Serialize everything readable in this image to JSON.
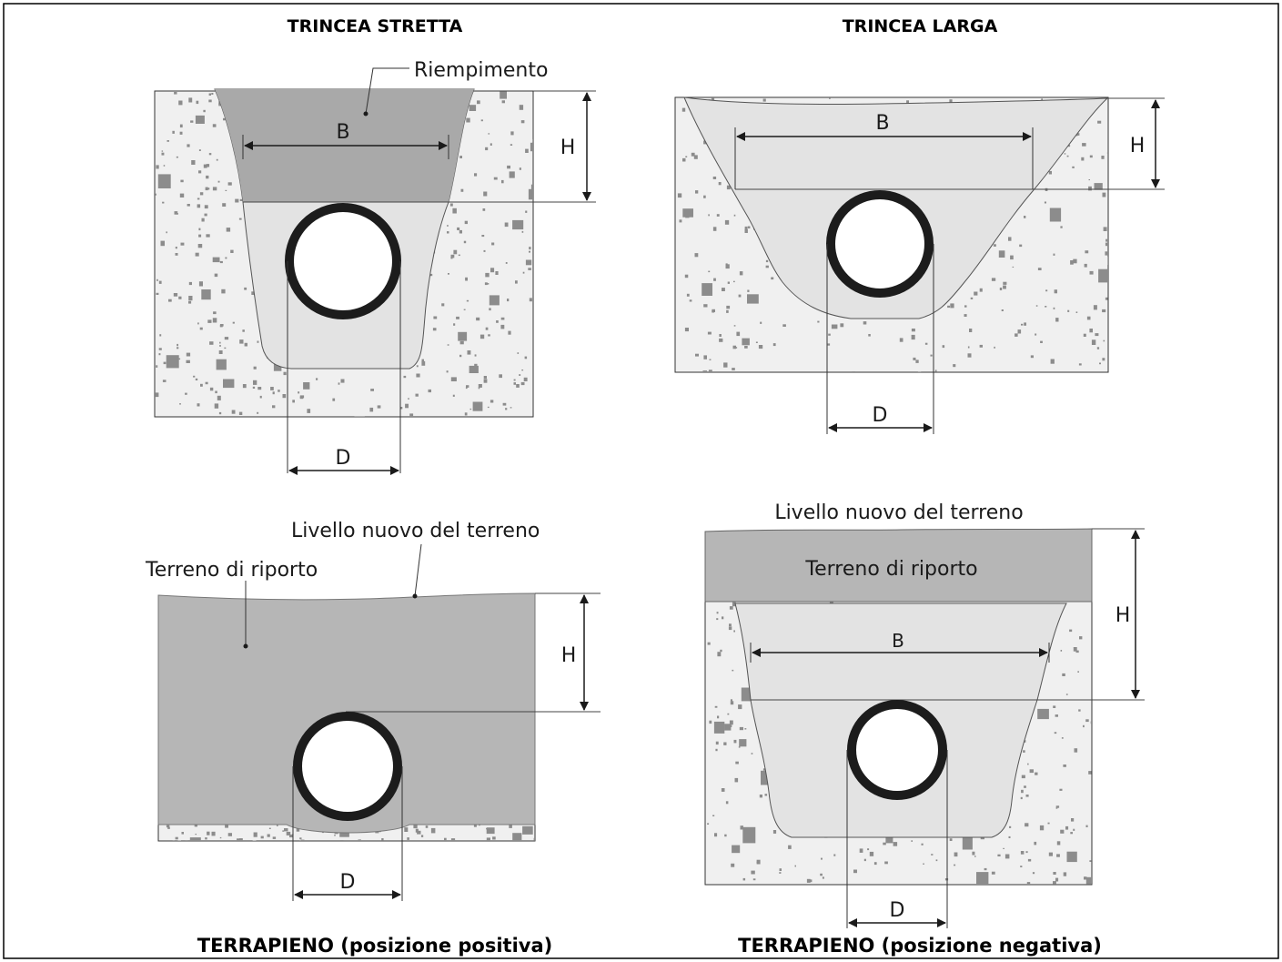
{
  "panels": {
    "narrow_trench": {
      "title": "TRINCEA STRETTA",
      "label_fill": "Riempimento",
      "label_B": "B",
      "label_H": "H",
      "label_D": "D"
    },
    "wide_trench": {
      "title": "TRINCEA LARGA",
      "label_B": "B",
      "label_H": "H",
      "label_D": "D"
    },
    "embankment_positive": {
      "title": "TERRAPIENO (posizione positiva)",
      "label_level": "Livello nuovo del terreno",
      "label_fill": "Terreno di riporto",
      "label_H": "H",
      "label_D": "D"
    },
    "embankment_negative": {
      "title": "TERRAPIENO (posizione negativa)",
      "label_level": "Livello nuovo del terreno",
      "label_fill": "Terreno di riporto",
      "label_B": "B",
      "label_H": "H",
      "label_D": "D"
    }
  },
  "colors": {
    "soil": "#f0f0f0",
    "speckle": "#8c8c8c",
    "backfill_dark": "#a9a9a9",
    "backfill_light": "#e3e3e3",
    "embankment": "#b6b6b6",
    "pipe_ring": "#1c1c1c"
  }
}
